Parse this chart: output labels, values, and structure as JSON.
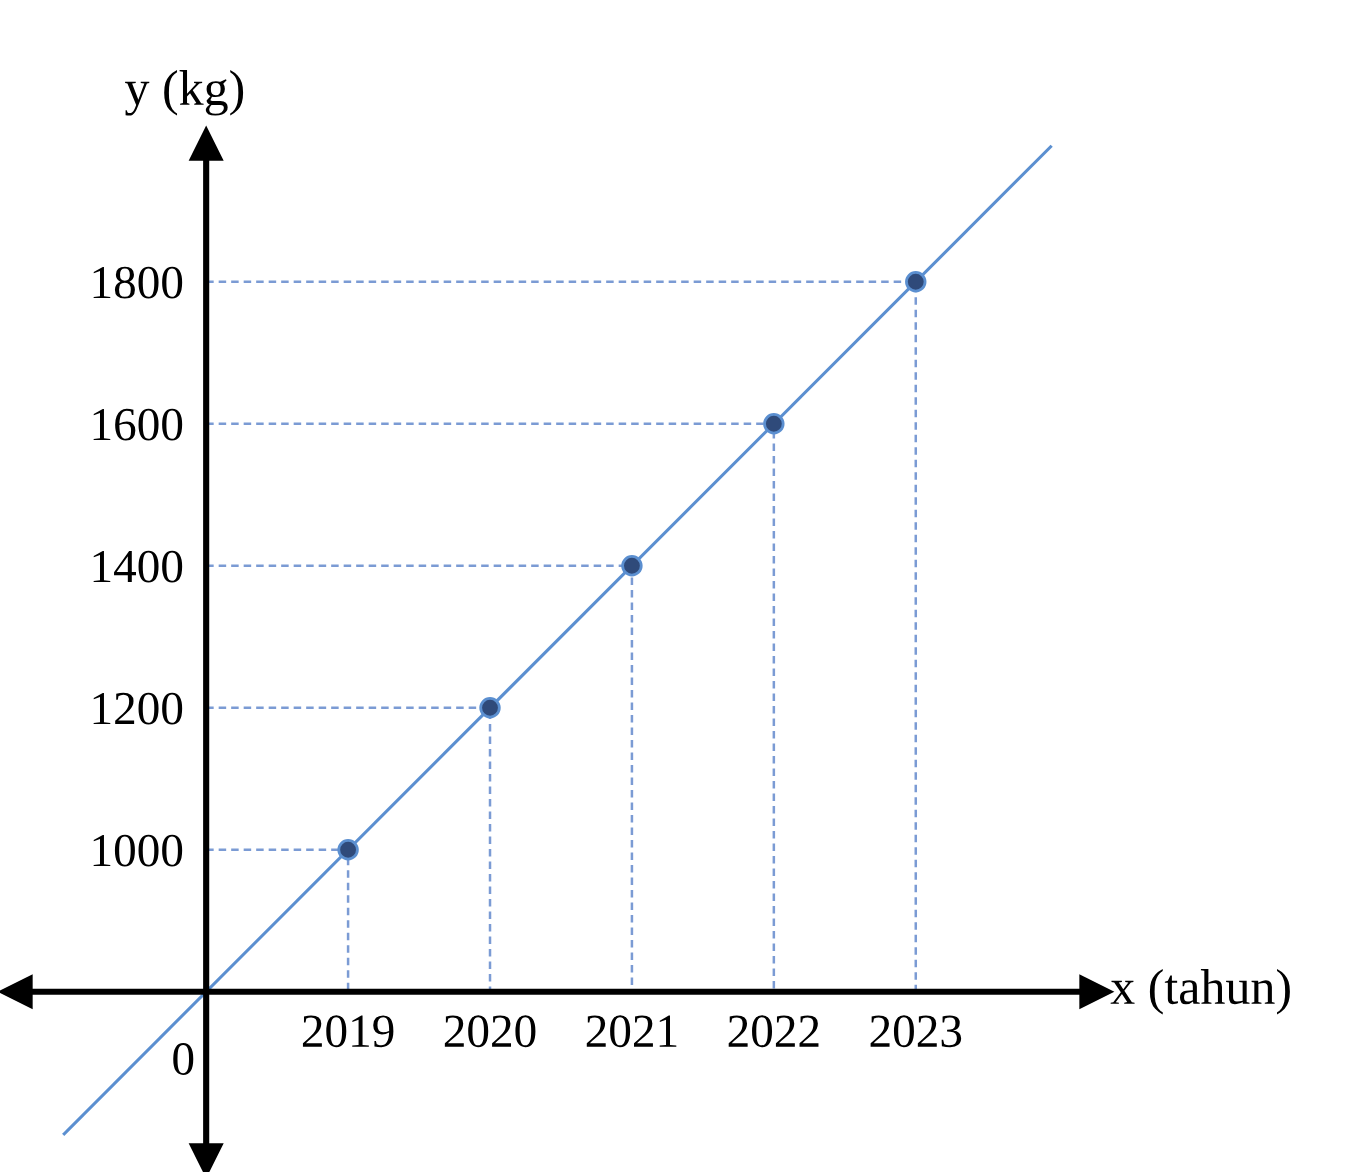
{
  "chart_data": {
    "type": "scatter",
    "xlabel": "x (tahun)",
    "ylabel": "y (kg)",
    "x": [
      2019,
      2020,
      2021,
      2022,
      2023
    ],
    "series": [
      {
        "color": "#2f4a7a",
        "marker": "circle",
        "values": [
          1000,
          1200,
          1400,
          1600,
          1800
        ]
      },
      {
        "type": "line",
        "color": "#5b8fd0",
        "x": [
          2017,
          2023.95
        ],
        "values": [
          600,
          1990
        ]
      },
      {
        "type": "line",
        "color": "#7b9bd4",
        "line_style": "dashed",
        "x": [
          2018,
          2019,
          2019
        ],
        "values": [
          1000,
          1000,
          800
        ]
      },
      {
        "type": "line",
        "color": "#7b9bd4",
        "line_style": "dashed",
        "x": [
          2018,
          2020,
          2020
        ],
        "values": [
          1200,
          1200,
          800
        ]
      },
      {
        "type": "line",
        "color": "#7b9bd4",
        "line_style": "dashed",
        "x": [
          2018,
          2021,
          2021
        ],
        "values": [
          1400,
          1400,
          800
        ]
      },
      {
        "type": "line",
        "color": "#7b9bd4",
        "line_style": "dashed",
        "x": [
          2018,
          2022,
          2022
        ],
        "values": [
          1600,
          1600,
          800
        ]
      },
      {
        "type": "line",
        "color": "#7b9bd4",
        "line_style": "dashed",
        "x": [
          2018,
          2023,
          2023
        ],
        "values": [
          1800,
          1800,
          800
        ]
      }
    ],
    "xlim": [
      2016.66,
      2024.27
    ],
    "ylim": [
      563,
      1994
    ],
    "annotations": [
      {
        "text": "0",
        "x": 2018,
        "y": 800
      }
    ],
    "xticks": [
      2019,
      2020,
      2021,
      2022,
      2023
    ],
    "yticks": [
      1000,
      1200,
      1400,
      1600,
      1800
    ],
    "grid": false,
    "legend": false
  }
}
